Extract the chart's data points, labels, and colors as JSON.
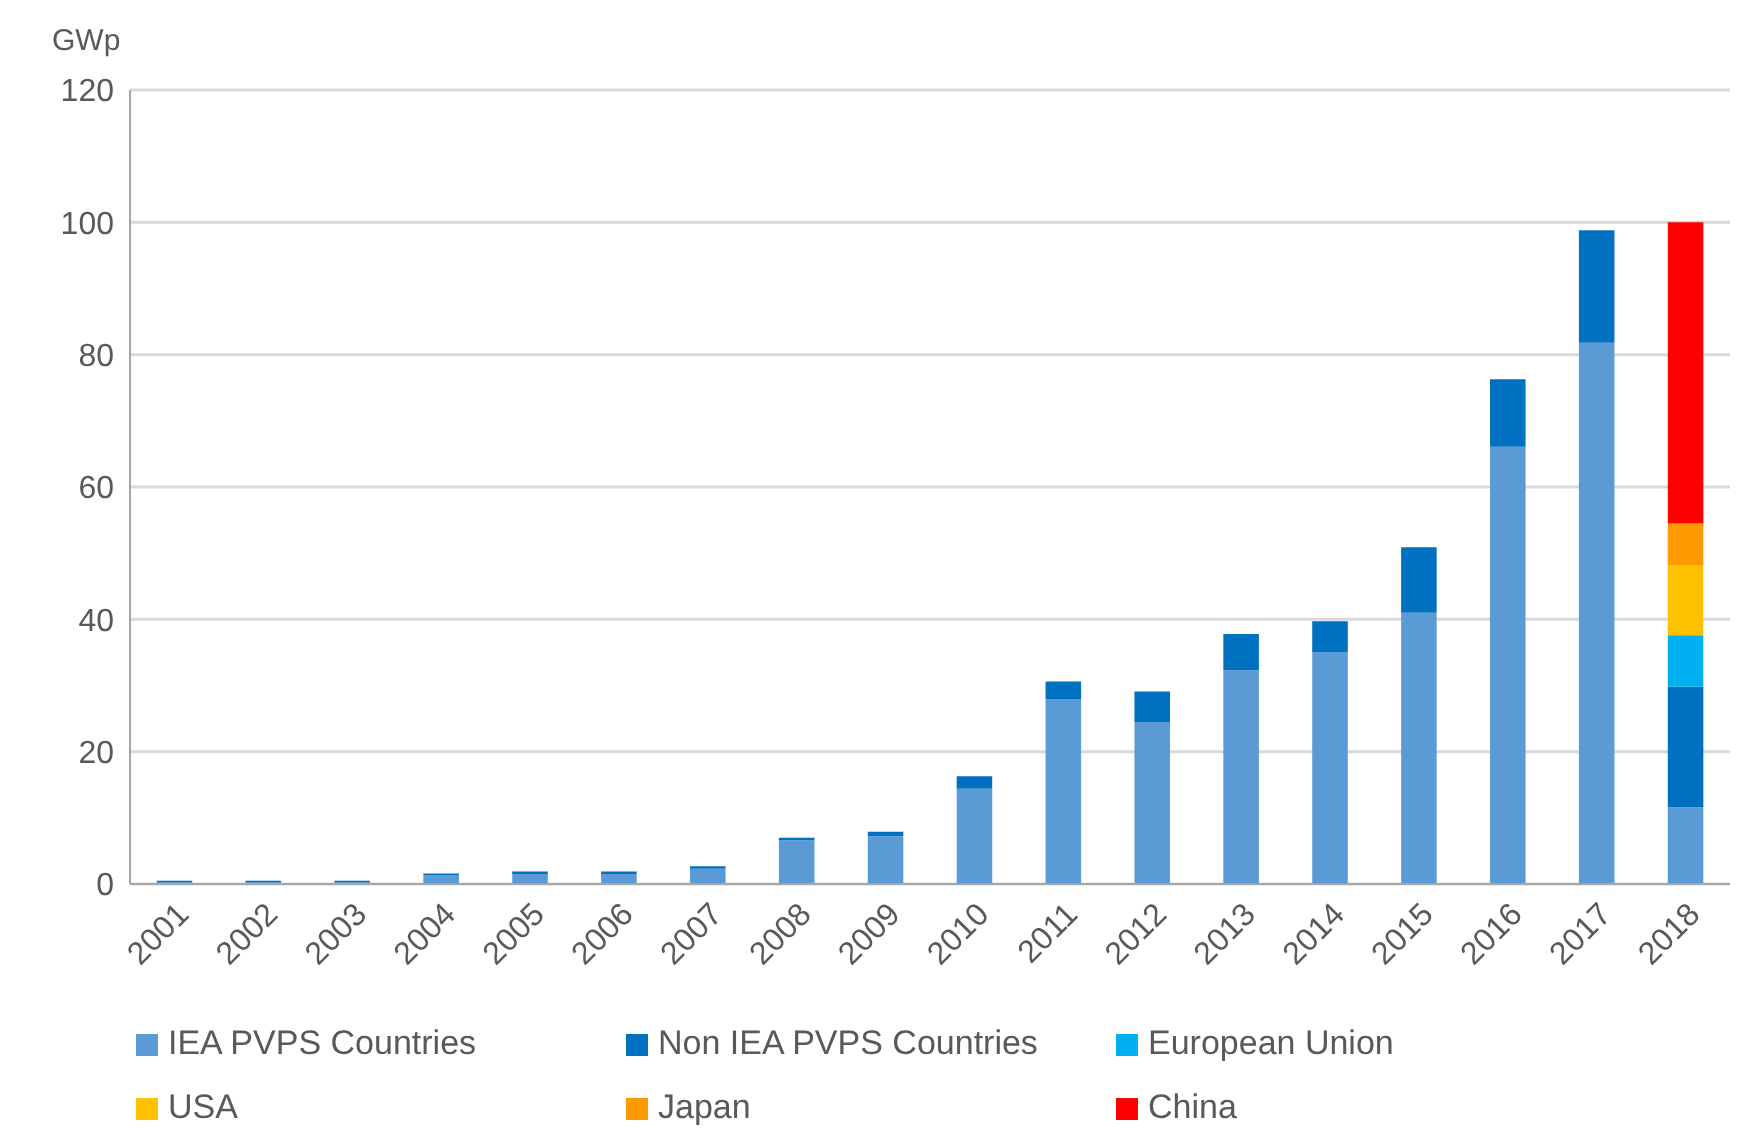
{
  "chart_data": {
    "type": "bar",
    "ylabel": "GWp",
    "stacked": true,
    "categories": [
      "2001",
      "2002",
      "2003",
      "2004",
      "2005",
      "2006",
      "2007",
      "2008",
      "2009",
      "2010",
      "2011",
      "2012",
      "2013",
      "2014",
      "2015",
      "2016",
      "2017",
      "2018"
    ],
    "series": [
      {
        "name": "IEA PVPS Countries",
        "color": "#5b9bd5",
        "values": [
          0.3,
          0.3,
          0.3,
          1.3,
          1.5,
          1.5,
          2.3,
          6.6,
          7.2,
          14.4,
          27.9,
          24.4,
          32.3,
          35,
          41,
          66.1,
          81.8,
          11.6
        ]
      },
      {
        "name": "Non IEA PVPS Countries",
        "color": "#0070c0",
        "values": [
          0.2,
          0.2,
          0.2,
          0.3,
          0.4,
          0.4,
          0.4,
          0.4,
          0.7,
          1.9,
          2.7,
          4.7,
          5.5,
          4.7,
          9.9,
          10.2,
          17,
          18.2
        ]
      },
      {
        "name": "European Union",
        "color": "#00b0f0",
        "values": [
          null,
          null,
          null,
          null,
          null,
          null,
          null,
          null,
          null,
          null,
          null,
          null,
          null,
          null,
          null,
          null,
          null,
          7.8
        ]
      },
      {
        "name": "USA",
        "color": "#ffc000",
        "values": [
          null,
          null,
          null,
          null,
          null,
          null,
          null,
          null,
          null,
          null,
          null,
          null,
          null,
          null,
          null,
          null,
          null,
          10.6
        ]
      },
      {
        "name": "Japan",
        "color": "#ff9900",
        "values": [
          null,
          null,
          null,
          null,
          null,
          null,
          null,
          null,
          null,
          null,
          null,
          null,
          null,
          null,
          null,
          null,
          null,
          6.3
        ]
      },
      {
        "name": "China",
        "color": "#ff0000",
        "values": [
          null,
          null,
          null,
          null,
          null,
          null,
          null,
          null,
          null,
          null,
          null,
          null,
          null,
          null,
          null,
          null,
          null,
          45.5
        ]
      }
    ],
    "ylim": [
      0,
      120
    ],
    "yticks": [
      0,
      20,
      40,
      60,
      80,
      100,
      120
    ],
    "grid": "y",
    "legend": "bottom"
  }
}
